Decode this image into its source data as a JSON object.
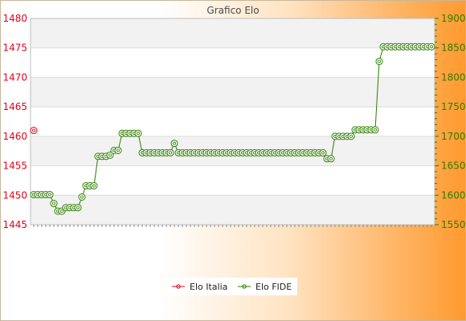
{
  "chart_data": {
    "type": "line",
    "title": "Grafico Elo",
    "xlabel": "",
    "ylabel": "",
    "ylim": [
      1445,
      1480
    ],
    "y2lim": [
      1550,
      1900
    ],
    "yticks_left": [
      1445,
      1450,
      1455,
      1460,
      1465,
      1470,
      1475,
      1480
    ],
    "yticks_right": [
      1550,
      1600,
      1650,
      1700,
      1750,
      1800,
      1850,
      1900
    ],
    "grid": true,
    "legend_position": "bottom",
    "x_count": 100,
    "series": [
      {
        "name": "Elo Italia",
        "axis": "left",
        "color": "#e8001a",
        "values": [
          1461
        ]
      },
      {
        "name": "Elo FIDE",
        "axis": "right",
        "color": "#2e7d00",
        "values": [
          1601,
          1601,
          1601,
          1601,
          1601,
          1586,
          1573,
          1573,
          1579,
          1579,
          1579,
          1579,
          1597,
          1616,
          1616,
          1616,
          1666,
          1666,
          1666,
          1668,
          1676,
          1676,
          1705,
          1705,
          1705,
          1705,
          1705,
          1672,
          1672,
          1672,
          1672,
          1672,
          1672,
          1672,
          1672,
          1688,
          1672,
          1672,
          1672,
          1672,
          1672,
          1672,
          1672,
          1672,
          1672,
          1672,
          1672,
          1672,
          1672,
          1672,
          1672,
          1672,
          1672,
          1672,
          1672,
          1672,
          1672,
          1672,
          1672,
          1672,
          1672,
          1672,
          1672,
          1672,
          1672,
          1672,
          1672,
          1672,
          1672,
          1672,
          1672,
          1672,
          1672,
          1662,
          1662,
          1700,
          1700,
          1700,
          1700,
          1700,
          1711,
          1711,
          1711,
          1711,
          1711,
          1711,
          1827,
          1852,
          1852,
          1852,
          1852,
          1852,
          1852,
          1852,
          1852,
          1852,
          1852,
          1852,
          1852,
          1852
        ]
      }
    ]
  }
}
